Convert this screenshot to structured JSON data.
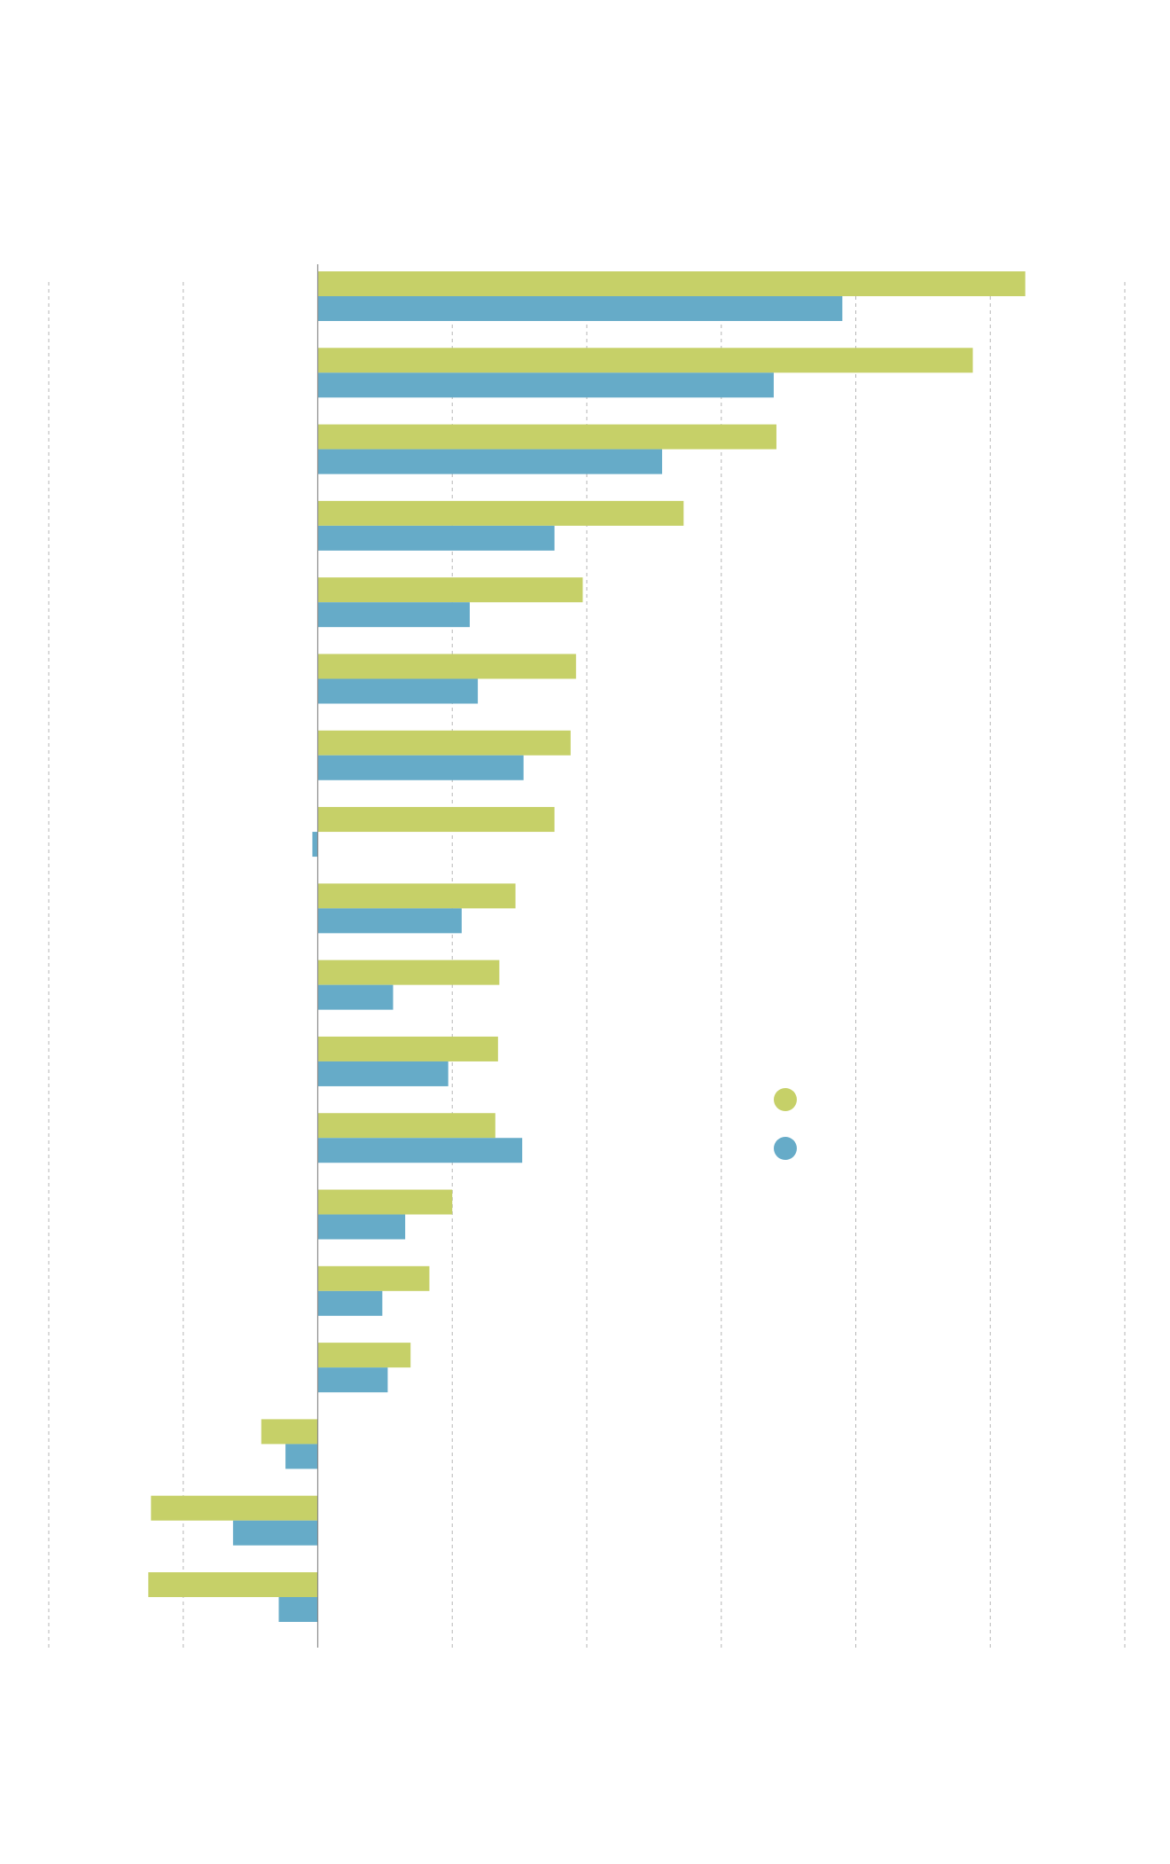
{
  "chart_data": {
    "type": "bar",
    "orientation": "horizontal",
    "title": "",
    "xlabel": "",
    "ylabel": "",
    "xlim": [
      -20,
      60
    ],
    "grid": true,
    "legend_placement": "right-middle",
    "series": [
      {
        "name": "",
        "color": "#c6d068",
        "values": [
          52.6,
          48.7,
          34.1,
          27.2,
          19.7,
          19.2,
          18.8,
          17.6,
          14.7,
          13.5,
          13.4,
          13.2,
          10.0,
          8.3,
          6.9,
          -4.2,
          -12.4,
          -12.6
        ]
      },
      {
        "name": "",
        "color": "#66abc8",
        "values": [
          39.0,
          33.9,
          25.6,
          17.6,
          11.3,
          11.9,
          15.3,
          -0.4,
          10.7,
          5.6,
          9.7,
          15.2,
          6.5,
          4.8,
          5.2,
          -2.4,
          -6.3,
          -2.9
        ]
      }
    ]
  }
}
